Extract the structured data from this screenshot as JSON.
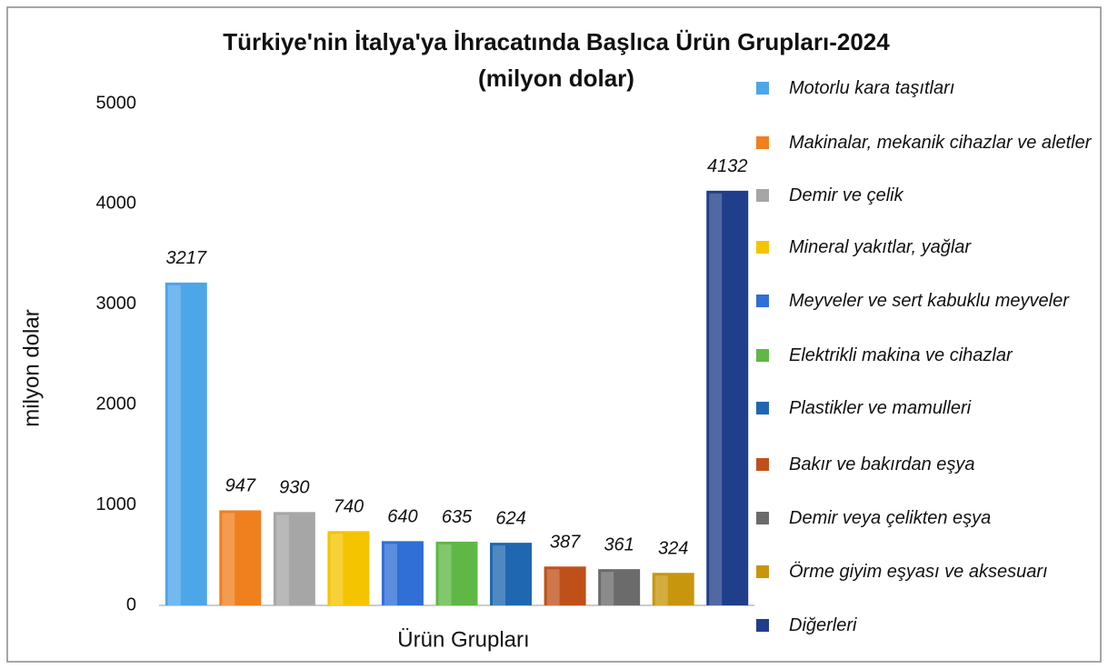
{
  "chart_data": {
    "type": "bar",
    "title": "Türkiye'nin İtalya'ya İhracatında Başlıca Ürün Grupları-2024",
    "subtitle": "(milyon dolar)",
    "x_label": "Ürün Grupları",
    "y_label": "milyon dolar",
    "categories": [
      "Motorlu kara taşıtları",
      "Makinalar, mekanik cihazlar ve aletler",
      "Demir ve çelik",
      "Mineral yakıtlar, yağlar",
      "Meyveler ve sert kabuklu meyveler",
      "Elektrikli makina ve cihazlar",
      "Plastikler ve mamulleri",
      "Bakır ve bakırdan eşya",
      "Demir veya çelikten eşya",
      "Örme giyim eşyası ve aksesuarı",
      "Diğerleri"
    ],
    "values": [
      3217,
      947,
      930,
      740,
      640,
      635,
      624,
      387,
      361,
      324,
      4132
    ],
    "colors": [
      "#4da6e8",
      "#f07f1e",
      "#a6a6a6",
      "#f5c400",
      "#2f6fd6",
      "#5fb845",
      "#1f67b0",
      "#c0501a",
      "#6b6b6b",
      "#c8960c",
      "#1f3f8a"
    ],
    "ylim": [
      0,
      5000
    ],
    "yticks": [
      0,
      1000,
      2000,
      3000,
      4000,
      5000
    ],
    "grid": false,
    "legend": "right"
  }
}
